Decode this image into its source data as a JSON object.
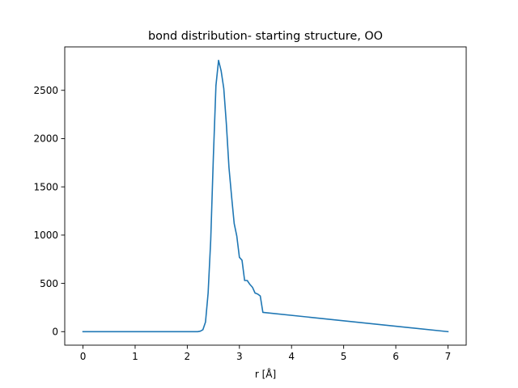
{
  "chart_data": {
    "type": "line",
    "title": "bond distribution- starting structure, OO",
    "xlabel": "r [Å]",
    "ylabel": "",
    "xlim": [
      -0.35,
      7.35
    ],
    "ylim": [
      -140,
      2950
    ],
    "xticks": [
      0,
      1,
      2,
      3,
      4,
      5,
      6,
      7
    ],
    "xtick_labels": [
      "0",
      "1",
      "2",
      "3",
      "4",
      "5",
      "6",
      "7"
    ],
    "yticks": [
      0,
      500,
      1000,
      1500,
      2000,
      2500
    ],
    "ytick_labels": [
      "0",
      "500",
      "1000",
      "1500",
      "2000",
      "2500"
    ],
    "grid": false,
    "legend": "none",
    "series": [
      {
        "color": "#1f77b4",
        "x": [
          0,
          2.2,
          2.25,
          2.3,
          2.35,
          2.4,
          2.45,
          2.5,
          2.55,
          2.6,
          2.65,
          2.7,
          2.75,
          2.8,
          2.85,
          2.9,
          2.95,
          3.0,
          3.05,
          3.1,
          3.15,
          3.2,
          3.25,
          3.3,
          3.35,
          3.4,
          3.45,
          7.0
        ],
        "y": [
          0,
          0,
          5,
          20,
          100,
          400,
          950,
          1800,
          2550,
          2810,
          2700,
          2520,
          2150,
          1700,
          1400,
          1120,
          990,
          770,
          740,
          530,
          530,
          490,
          460,
          400,
          390,
          370,
          200,
          0
        ]
      }
    ]
  }
}
